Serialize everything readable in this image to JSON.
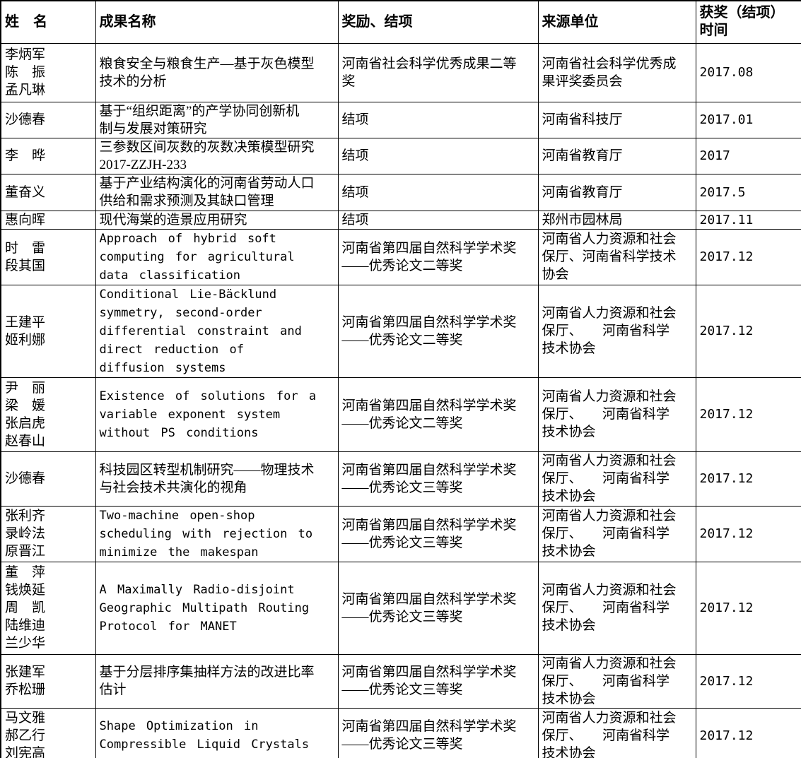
{
  "table": {
    "headers": [
      "姓　名",
      "成果名称",
      "奖励、结项",
      "来源单位",
      "获奖（结项）\n时间"
    ],
    "rows": [
      {
        "names": "李炳军\n陈　振\n孟凡琳",
        "achievement": "粮食安全与粮食生产—基于灰色模型\n技术的分析",
        "award": "河南省社会科学优秀成果二等\n奖",
        "source": "河南省社会科学优秀成\n果评奖委员会",
        "time": "2017.08"
      },
      {
        "names": "沙德春",
        "achievement": "基于“组织距离”的产学协同创新机\n制与发展对策研究",
        "award": "结项",
        "source": "河南省科技厅",
        "time": "2017.01"
      },
      {
        "names": "李　晔",
        "achievement": "三参数区间灰数的灰数决策模型研究\n2017-ZZJH-233",
        "award": "结项",
        "source": "河南省教育厅",
        "time": "2017"
      },
      {
        "names": "董奋义",
        "achievement": "基于产业结构演化的河南省劳动人口\n供给和需求预测及其缺口管理",
        "award": "结项",
        "source": "河南省教育厅",
        "time": "2017.5"
      },
      {
        "names": "惠向晖",
        "achievement": "现代海棠的造景应用研究",
        "award": "结项",
        "source": "郑州市园林局",
        "time": "2017.11"
      },
      {
        "names": "时　雷\n段其国",
        "achievement": "Approach of hybrid soft\ncomputing for agricultural\ndata classification",
        "award": "河南省第四届自然科学学术奖\n——优秀论文二等奖",
        "source": "河南省人力资源和社会\n保厅、河南省科学技术\n协会",
        "time": "2017.12"
      },
      {
        "names": "王建平\n姬利娜",
        "achievement": "Conditional Lie-Bäcklund\nsymmetry, second-order\ndifferential constraint and\ndirect reduction of\ndiffusion systems",
        "award": "河南省第四届自然科学学术奖\n——优秀论文二等奖",
        "source": "河南省人力资源和社会\n保厅、　　河南省科学\n技术协会",
        "time": "2017.12"
      },
      {
        "names": "尹　丽\n梁　媛\n张启虎\n赵春山",
        "achievement": "Existence of solutions for a\nvariable exponent system\nwithout PS conditions",
        "award": "河南省第四届自然科学学术奖\n——优秀论文二等奖",
        "source": "河南省人力资源和社会\n保厅、　　河南省科学\n技术协会",
        "time": "2017.12"
      },
      {
        "names": "沙德春",
        "achievement": "科技园区转型机制研究——物理技术\n与社会技术共演化的视角",
        "award": "河南省第四届自然科学学术奖\n——优秀论文三等奖",
        "source": "河南省人力资源和社会\n保厅、　　河南省科学\n技术协会",
        "time": "2017.12"
      },
      {
        "names": "张利齐\n录岭法\n原晋江",
        "achievement": "Two-machine open-shop\nscheduling with rejection to\nminimize the makespan",
        "award": "河南省第四届自然科学学术奖\n——优秀论文三等奖",
        "source": "河南省人力资源和社会\n保厅、　　河南省科学\n技术协会",
        "time": "2017.12"
      },
      {
        "names": "董　萍\n钱焕延\n周　凯\n陆维迪\n兰少华",
        "achievement": "A Maximally Radio-disjoint\nGeographic Multipath Routing\nProtocol for MANET",
        "award": "河南省第四届自然科学学术奖\n——优秀论文三等奖",
        "source": "河南省人力资源和社会\n保厅、　　河南省科学\n技术协会",
        "time": "2017.12"
      },
      {
        "names": "张建军\n乔松珊",
        "achievement": "基于分层排序集抽样方法的改进比率\n估计",
        "award": "河南省第四届自然科学学术奖\n——优秀论文三等奖",
        "source": "河南省人力资源和社会\n保厅、　　河南省科学\n技术协会",
        "time": "2017.12"
      },
      {
        "names": "马文雅\n郝乙行\n刘宪高",
        "achievement": "Shape Optimization in\nCompressible Liquid Crystals",
        "award": "河南省第四届自然科学学术奖\n——优秀论文三等奖",
        "source": "河南省人力资源和社会\n保厅、　　河南省科学\n技术协会",
        "time": "2017.12"
      }
    ]
  }
}
